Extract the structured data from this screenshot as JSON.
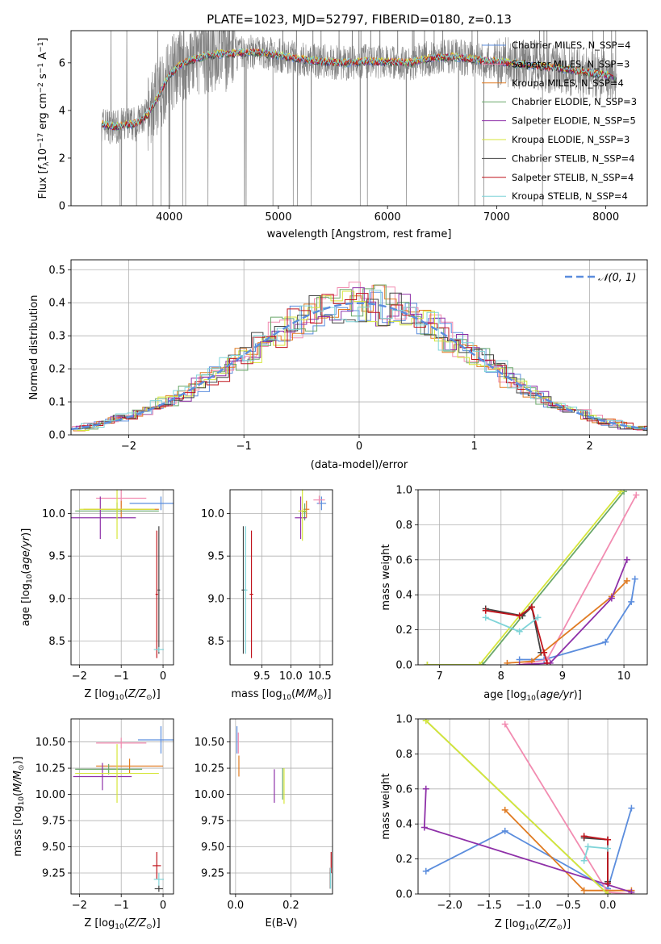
{
  "palette": {
    "chabrier_miles": "#5b8ddd",
    "salpeter_miles": "#f28cb1",
    "kroupa_miles": "#e07b22",
    "chabrier_elodie": "#6aa86a",
    "salpeter_elodie": "#8e30a8",
    "kroupa_elodie": "#d6e63a",
    "chabrier_stelib": "#444444",
    "salpeter_stelib": "#c0141c",
    "kroupa_stelib": "#7fd4d8",
    "spectrum": "#808080",
    "grid": "#b0b0b0"
  },
  "chart_data": [
    {
      "id": "spectrum",
      "type": "line",
      "title": "PLATE=1023, MJD=52797, FIBERID=0180, z=0.13",
      "xlabel": "wavelength [Angstrom, rest frame]",
      "ylabel": "Flux [f_λ 10^-17 erg cm^-2 s^-1 A^-1]",
      "xlim": [
        3100,
        8380
      ],
      "ylim": [
        0,
        7.35
      ],
      "xticks": [
        "4000",
        "5000",
        "6000",
        "7000",
        "8000"
      ],
      "yticks": [
        "0",
        "2",
        "4",
        "6"
      ],
      "grid": false,
      "legend_position": "top-right",
      "legend": [
        {
          "label": "Chabrier MILES, N_SSP=4",
          "color": "#5b8ddd"
        },
        {
          "label": "Salpeter MILES, N_SSP=3",
          "color": "#f28cb1"
        },
        {
          "label": "Kroupa MILES, N_SSP=4",
          "color": "#e07b22"
        },
        {
          "label": "Chabrier ELODIE, N_SSP=3",
          "color": "#6aa86a"
        },
        {
          "label": "Salpeter ELODIE, N_SSP=5",
          "color": "#8e30a8"
        },
        {
          "label": "Kroupa ELODIE, N_SSP=3",
          "color": "#d6e63a"
        },
        {
          "label": "Chabrier STELIB, N_SSP=4",
          "color": "#444444"
        },
        {
          "label": "Salpeter STELIB, N_SSP=4",
          "color": "#c0141c"
        },
        {
          "label": "Kroupa STELIB, N_SSP=4",
          "color": "#7fd4d8"
        }
      ],
      "continuum": {
        "x": [
          3380,
          3500,
          3600,
          3700,
          3800,
          3900,
          4000,
          4100,
          4200,
          4300,
          4400,
          4600,
          4800,
          5000,
          5200,
          5400,
          5600,
          5800,
          6000,
          6200,
          6400,
          6600,
          6800,
          7000,
          7200,
          7400,
          7600,
          7800,
          8000,
          8100
        ],
        "y": [
          3.45,
          3.3,
          3.4,
          3.45,
          3.8,
          4.6,
          5.5,
          5.9,
          6.1,
          6.25,
          6.35,
          6.4,
          6.45,
          6.3,
          6.15,
          6.05,
          6.0,
          6.05,
          6.05,
          6.0,
          6.2,
          6.25,
          6.15,
          6.05,
          5.95,
          5.85,
          5.75,
          5.6,
          5.5,
          5.3
        ]
      }
    },
    {
      "id": "residuals",
      "type": "line",
      "xlabel": "(data-model)/error",
      "ylabel": "Normed distribution",
      "xlim": [
        -2.5,
        2.5
      ],
      "ylim": [
        0,
        0.53
      ],
      "xticks": [
        "−2",
        "−1",
        "0",
        "1",
        "2"
      ],
      "yticks": [
        "0.0",
        "0.1",
        "0.2",
        "0.3",
        "0.4",
        "0.5"
      ],
      "grid": true,
      "legend_position": "top-right",
      "legend_label": "𝒩(0, 1)",
      "normal_curve": {
        "mean": 0,
        "sigma": 1
      }
    },
    {
      "id": "age_vs_Z",
      "type": "scatter",
      "xlabel": "Z [log10(Z/Z⊙)]",
      "ylabel": "age [log10(age/yr)]",
      "xlim": [
        -2.2,
        0.25
      ],
      "ylim": [
        8.22,
        10.28
      ],
      "xticks": [
        "−2",
        "−1",
        "0"
      ],
      "yticks": [
        "8.5",
        "9.0",
        "9.5",
        "10.0"
      ],
      "grid": true,
      "points": [
        {
          "library": "chabrier_miles",
          "x": -0.05,
          "y": 10.12,
          "xerr": 0.75,
          "yerr": 0.08
        },
        {
          "library": "salpeter_miles",
          "x": -1.0,
          "y": 10.18,
          "xerr": 0.6,
          "yerr": 0.1
        },
        {
          "library": "kroupa_miles",
          "x": -1.0,
          "y": 10.05,
          "xerr": 0.9,
          "yerr": 0.1
        },
        {
          "library": "chabrier_elodie",
          "x": -1.1,
          "y": 10.03,
          "xerr": 1.0,
          "yerr": 0.1
        },
        {
          "library": "salpeter_elodie",
          "x": -1.5,
          "y": 9.95,
          "xerr": 0.85,
          "yerr": 0.25
        },
        {
          "library": "kroupa_elodie",
          "x": -1.1,
          "y": 10.05,
          "xerr": 0.9,
          "yerr": 0.35
        },
        {
          "library": "chabrier_stelib",
          "x": -0.1,
          "y": 9.1,
          "xerr": 0.03,
          "yerr": 0.75
        },
        {
          "library": "salpeter_stelib",
          "x": -0.15,
          "y": 9.05,
          "xerr": 0.03,
          "yerr": 0.75
        },
        {
          "library": "kroupa_stelib",
          "x": -0.1,
          "y": 8.4,
          "xerr": 0.12,
          "yerr": 0.03
        }
      ]
    },
    {
      "id": "age_vs_mass",
      "type": "scatter",
      "xlabel": "mass [log10(M/M⊙)]",
      "xlim": [
        8.95,
        10.72
      ],
      "ylim": [
        8.22,
        10.28
      ],
      "xticks": [
        "9.5",
        "10.0",
        "10.5"
      ],
      "yticks": [
        "8.5",
        "9.0",
        "9.5",
        "10.0"
      ],
      "grid": true,
      "points": [
        {
          "library": "chabrier_miles",
          "x": 10.53,
          "y": 10.12,
          "xerr": 0.08,
          "yerr": 0.08
        },
        {
          "library": "salpeter_miles",
          "x": 10.49,
          "y": 10.16,
          "xerr": 0.1,
          "yerr": 0.05
        },
        {
          "library": "kroupa_miles",
          "x": 10.27,
          "y": 10.05,
          "xerr": 0.05,
          "yerr": 0.1
        },
        {
          "library": "chabrier_elodie",
          "x": 10.24,
          "y": 10.02,
          "xerr": 0.03,
          "yerr": 0.1
        },
        {
          "library": "salpeter_elodie",
          "x": 10.17,
          "y": 9.95,
          "xerr": 0.1,
          "yerr": 0.25
        },
        {
          "library": "kroupa_elodie",
          "x": 10.2,
          "y": 10.03,
          "xerr": 0.07,
          "yerr": 0.35
        },
        {
          "library": "chabrier_stelib",
          "x": 9.18,
          "y": 9.1,
          "xerr": 0.03,
          "yerr": 0.75
        },
        {
          "library": "salpeter_stelib",
          "x": 9.32,
          "y": 9.05,
          "xerr": 0.03,
          "yerr": 0.75
        },
        {
          "library": "kroupa_stelib",
          "x": 9.22,
          "y": 9.1,
          "xerr": 0.03,
          "yerr": 0.75
        }
      ]
    },
    {
      "id": "weight_vs_age",
      "type": "line",
      "xlabel": "age [log10(age/yr)]",
      "ylabel": "mass weight",
      "xlim": [
        6.65,
        10.38
      ],
      "ylim": [
        0,
        1.0
      ],
      "xticks": [
        "7",
        "8",
        "9",
        "10"
      ],
      "yticks": [
        "0.0",
        "0.2",
        "0.4",
        "0.6",
        "0.8",
        "1.0"
      ],
      "grid": true,
      "series": [
        {
          "library": "chabrier_miles",
          "x": [
            8.3,
            8.7,
            9.7,
            10.12,
            10.18
          ],
          "y": [
            0.03,
            0.03,
            0.13,
            0.36,
            0.49
          ]
        },
        {
          "library": "salpeter_miles",
          "x": [
            8.3,
            8.75,
            10.2
          ],
          "y": [
            0.0,
            0.03,
            0.97
          ]
        },
        {
          "library": "kroupa_miles",
          "x": [
            8.1,
            8.5,
            9.8,
            10.05
          ],
          "y": [
            0.01,
            0.02,
            0.39,
            0.48
          ]
        },
        {
          "library": "chabrier_elodie",
          "x": [
            6.8,
            7.7,
            10.0
          ],
          "y": [
            0.0,
            0.0,
            0.99
          ]
        },
        {
          "library": "salpeter_elodie",
          "x": [
            8.3,
            8.8,
            9.8,
            10.05
          ],
          "y": [
            0.0,
            0.01,
            0.38,
            0.6
          ]
        },
        {
          "library": "kroupa_elodie",
          "x": [
            6.8,
            7.65,
            9.95
          ],
          "y": [
            0.0,
            0.0,
            0.99
          ]
        },
        {
          "library": "chabrier_stelib",
          "x": [
            7.75,
            8.35,
            8.5,
            8.65
          ],
          "y": [
            0.32,
            0.28,
            0.33,
            0.07
          ]
        },
        {
          "library": "salpeter_stelib",
          "x": [
            7.75,
            8.3,
            8.5,
            8.7,
            8.75
          ],
          "y": [
            0.31,
            0.28,
            0.33,
            0.07,
            0.01
          ]
        },
        {
          "library": "kroupa_stelib",
          "x": [
            7.75,
            8.3,
            8.6
          ],
          "y": [
            0.27,
            0.19,
            0.27
          ]
        }
      ]
    },
    {
      "id": "mass_vs_Z",
      "type": "scatter",
      "xlabel": "Z [log10(Z/Z⊙)]",
      "ylabel": "mass [log10(M/M⊙)]",
      "xlim": [
        -2.2,
        0.25
      ],
      "ylim": [
        9.05,
        10.72
      ],
      "xticks": [
        "−2",
        "−1",
        "0"
      ],
      "yticks": [
        "9.25",
        "9.50",
        "9.75",
        "10.00",
        "10.25",
        "10.50"
      ],
      "grid": true,
      "points": [
        {
          "library": "chabrier_miles",
          "x": -0.05,
          "y": 10.52,
          "xerr": 0.55,
          "yerr": 0.13
        },
        {
          "library": "salpeter_miles",
          "x": -1.0,
          "y": 10.49,
          "xerr": 0.6,
          "yerr": 0.05
        },
        {
          "library": "kroupa_miles",
          "x": -0.8,
          "y": 10.27,
          "xerr": 0.8,
          "yerr": 0.07
        },
        {
          "library": "chabrier_elodie",
          "x": -1.3,
          "y": 10.24,
          "xerr": 0.8,
          "yerr": 0.05
        },
        {
          "library": "salpeter_elodie",
          "x": -1.45,
          "y": 10.17,
          "xerr": 0.7,
          "yerr": 0.13
        },
        {
          "library": "kroupa_elodie",
          "x": -1.1,
          "y": 10.2,
          "xerr": 1.0,
          "yerr": 0.28
        },
        {
          "library": "chabrier_stelib",
          "x": -0.1,
          "y": 9.1,
          "xerr": 0.1,
          "yerr": 0.03
        },
        {
          "library": "salpeter_stelib",
          "x": -0.15,
          "y": 9.32,
          "xerr": 0.1,
          "yerr": 0.13
        },
        {
          "library": "kroupa_stelib",
          "x": -0.1,
          "y": 9.19,
          "xerr": 0.12,
          "yerr": 0.06
        }
      ]
    },
    {
      "id": "mass_vs_ebv",
      "type": "scatter",
      "xlabel": "E(B-V)",
      "xlim": [
        -0.02,
        0.35
      ],
      "ylim": [
        9.05,
        10.72
      ],
      "xticks": [
        "0.0",
        "0.2"
      ],
      "yticks": [
        "9.25",
        "9.50",
        "9.75",
        "10.00",
        "10.25",
        "10.50"
      ],
      "grid": true,
      "points": [
        {
          "library": "chabrier_miles",
          "x": 0.005,
          "y": 10.52,
          "xerr": 0.0,
          "yerr": 0.13
        },
        {
          "library": "salpeter_miles",
          "x": 0.01,
          "y": 10.49,
          "xerr": 0.0,
          "yerr": 0.1
        },
        {
          "library": "kroupa_miles",
          "x": 0.012,
          "y": 10.27,
          "xerr": 0.0,
          "yerr": 0.1
        },
        {
          "library": "chabrier_elodie",
          "x": 0.17,
          "y": 10.1,
          "xerr": 0.0,
          "yerr": 0.15
        },
        {
          "library": "salpeter_elodie",
          "x": 0.14,
          "y": 10.08,
          "xerr": 0.0,
          "yerr": 0.16
        },
        {
          "library": "kroupa_elodie",
          "x": 0.175,
          "y": 10.08,
          "xerr": 0.0,
          "yerr": 0.17
        },
        {
          "library": "chabrier_stelib",
          "x": 0.342,
          "y": 9.2,
          "xerr": 0.0,
          "yerr": 0.1
        },
        {
          "library": "salpeter_stelib",
          "x": 0.345,
          "y": 9.35,
          "xerr": 0.0,
          "yerr": 0.1
        },
        {
          "library": "kroupa_stelib",
          "x": 0.343,
          "y": 9.2,
          "xerr": 0.0,
          "yerr": 0.1
        }
      ]
    },
    {
      "id": "weight_vs_Z",
      "type": "line",
      "xlabel": "Z [log10(Z/Z⊙)]",
      "ylabel": "mass weight",
      "xlim": [
        -2.4,
        0.5
      ],
      "ylim": [
        0,
        1.0
      ],
      "xticks": [
        "−2.0",
        "−1.5",
        "−1.0",
        "−0.5",
        "0.0"
      ],
      "yticks": [
        "0.0",
        "0.2",
        "0.4",
        "0.6",
        "0.8",
        "1.0"
      ],
      "grid": true,
      "series": [
        {
          "library": "chabrier_miles",
          "x": [
            -2.3,
            -1.3,
            0.0,
            0.3
          ],
          "y": [
            0.13,
            0.36,
            0.03,
            0.49
          ]
        },
        {
          "library": "salpeter_miles",
          "x": [
            -1.3,
            0.0,
            0.3
          ],
          "y": [
            0.97,
            0.01,
            0.0
          ]
        },
        {
          "library": "kroupa_miles",
          "x": [
            -1.3,
            -0.3,
            0.3
          ],
          "y": [
            0.48,
            0.02,
            0.02
          ]
        },
        {
          "library": "chabrier_elodie",
          "x": [
            -2.3,
            0.0
          ],
          "y": [
            0.99,
            0.0
          ]
        },
        {
          "library": "salpeter_elodie",
          "x": [
            -2.3,
            -2.32,
            0.3
          ],
          "y": [
            0.6,
            0.38,
            0.01
          ]
        },
        {
          "library": "kroupa_elodie",
          "x": [
            -2.3,
            0.0
          ],
          "y": [
            0.99,
            0.0
          ]
        },
        {
          "library": "chabrier_stelib",
          "x": [
            -0.3,
            0.0,
            0.0
          ],
          "y": [
            0.32,
            0.31,
            0.07
          ]
        },
        {
          "library": "salpeter_stelib",
          "x": [
            -0.3,
            0.0,
            0.0
          ],
          "y": [
            0.33,
            0.31,
            0.06
          ]
        },
        {
          "library": "kroupa_stelib",
          "x": [
            -0.3,
            -0.25,
            0.0
          ],
          "y": [
            0.19,
            0.27,
            0.26
          ]
        }
      ]
    }
  ]
}
